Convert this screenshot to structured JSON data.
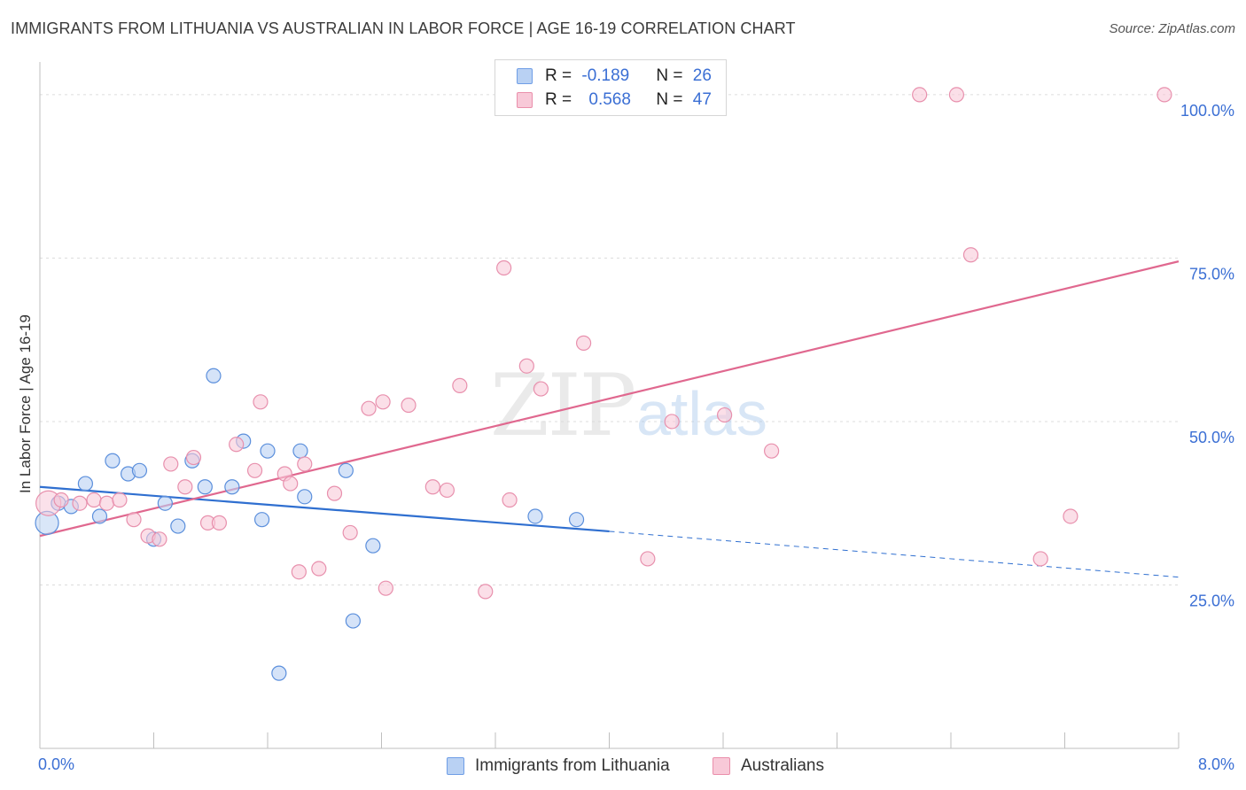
{
  "title": "IMMIGRANTS FROM LITHUANIA VS AUSTRALIAN IN LABOR FORCE | AGE 16-19 CORRELATION CHART",
  "source": "Source: ZipAtlas.com",
  "watermark": {
    "zip": "ZIP",
    "atlas": "atlas"
  },
  "legend": {
    "rows": [
      {
        "r_label": "R = ",
        "r_value": "-0.189",
        "n_label": "N = ",
        "n_value": "26",
        "color": "#a9c7f0",
        "border": "#6f9ee6"
      },
      {
        "r_label": "R = ",
        "r_value": "0.568",
        "n_label": "N = ",
        "n_value": "47",
        "color": "#f7bfd0",
        "border": "#ea8fab"
      }
    ]
  },
  "colors": {
    "blue_fill": "#b9d1f3",
    "blue_stroke": "#5b8fdc",
    "blue_line": "#2f6fd0",
    "pink_fill": "#f8c9d8",
    "pink_stroke": "#e890ad",
    "pink_line": "#e0688f",
    "tick_label": "#3b6fd4"
  },
  "chart_data": {
    "type": "scatter",
    "title": "IMMIGRANTS FROM LITHUANIA VS AUSTRALIAN IN LABOR FORCE | AGE 16-19 CORRELATION CHART",
    "xlabel": "",
    "ylabel": "In Labor Force | Age 16-19",
    "xlim": [
      0,
      8
    ],
    "ylim": [
      0,
      105
    ],
    "x_tick_labels": [
      "0.0%",
      "8.0%"
    ],
    "y_ticks": [
      25,
      50,
      75,
      100
    ],
    "y_tick_labels": [
      "25.0%",
      "50.0%",
      "75.0%",
      "100.0%"
    ],
    "grid": true,
    "legend_position": "top-center",
    "series": [
      {
        "name": "Immigrants from Lithuania",
        "points": [
          [
            0.05,
            34.5
          ],
          [
            0.13,
            37.5
          ],
          [
            0.22,
            37.0
          ],
          [
            0.32,
            40.5
          ],
          [
            0.42,
            35.5
          ],
          [
            0.51,
            44.0
          ],
          [
            0.62,
            42.0
          ],
          [
            0.7,
            42.5
          ],
          [
            0.8,
            32.0
          ],
          [
            0.88,
            37.5
          ],
          [
            0.97,
            34.0
          ],
          [
            1.07,
            44.0
          ],
          [
            1.16,
            40.0
          ],
          [
            1.22,
            57.0
          ],
          [
            1.35,
            40.0
          ],
          [
            1.43,
            47.0
          ],
          [
            1.56,
            35.0
          ],
          [
            1.6,
            45.5
          ],
          [
            1.68,
            11.5
          ],
          [
            1.83,
            45.5
          ],
          [
            1.86,
            38.5
          ],
          [
            2.15,
            42.5
          ],
          [
            2.2,
            19.5
          ],
          [
            2.34,
            31.0
          ],
          [
            3.48,
            35.5
          ],
          [
            3.77,
            35.0
          ]
        ],
        "trend": {
          "x0": 0.0,
          "y0": 40.0,
          "x1": 4.0,
          "y1": 33.2,
          "dash_to_x": 8.0,
          "dash_to_y": 26.2
        }
      },
      {
        "name": "Australians",
        "points": [
          [
            0.06,
            37.5
          ],
          [
            0.15,
            38.0
          ],
          [
            0.28,
            37.5
          ],
          [
            0.38,
            38.0
          ],
          [
            0.47,
            37.5
          ],
          [
            0.56,
            38.0
          ],
          [
            0.66,
            35.0
          ],
          [
            0.76,
            32.5
          ],
          [
            0.84,
            32.0
          ],
          [
            0.92,
            43.5
          ],
          [
            1.02,
            40.0
          ],
          [
            1.08,
            44.5
          ],
          [
            1.18,
            34.5
          ],
          [
            1.26,
            34.5
          ],
          [
            1.38,
            46.5
          ],
          [
            1.51,
            42.5
          ],
          [
            1.55,
            53.0
          ],
          [
            1.72,
            42.0
          ],
          [
            1.76,
            40.5
          ],
          [
            1.82,
            27.0
          ],
          [
            1.86,
            43.5
          ],
          [
            1.96,
            27.5
          ],
          [
            2.07,
            39.0
          ],
          [
            2.18,
            33.0
          ],
          [
            2.31,
            52.0
          ],
          [
            2.41,
            53.0
          ],
          [
            2.43,
            24.5
          ],
          [
            2.59,
            52.5
          ],
          [
            2.76,
            40.0
          ],
          [
            2.86,
            39.5
          ],
          [
            2.95,
            55.5
          ],
          [
            3.13,
            24.0
          ],
          [
            3.26,
            73.5
          ],
          [
            3.3,
            38.0
          ],
          [
            3.42,
            58.5
          ],
          [
            3.52,
            55.0
          ],
          [
            3.82,
            62.0
          ],
          [
            4.27,
            29.0
          ],
          [
            4.44,
            50.0
          ],
          [
            4.81,
            51.0
          ],
          [
            5.14,
            45.5
          ],
          [
            6.18,
            100.0
          ],
          [
            6.44,
            100.0
          ],
          [
            6.54,
            75.5
          ],
          [
            7.03,
            29.0
          ],
          [
            7.24,
            35.5
          ],
          [
            7.9,
            100.0
          ]
        ],
        "trend": {
          "x0": 0.0,
          "y0": 32.5,
          "x1": 8.0,
          "y1": 74.5
        }
      }
    ]
  }
}
